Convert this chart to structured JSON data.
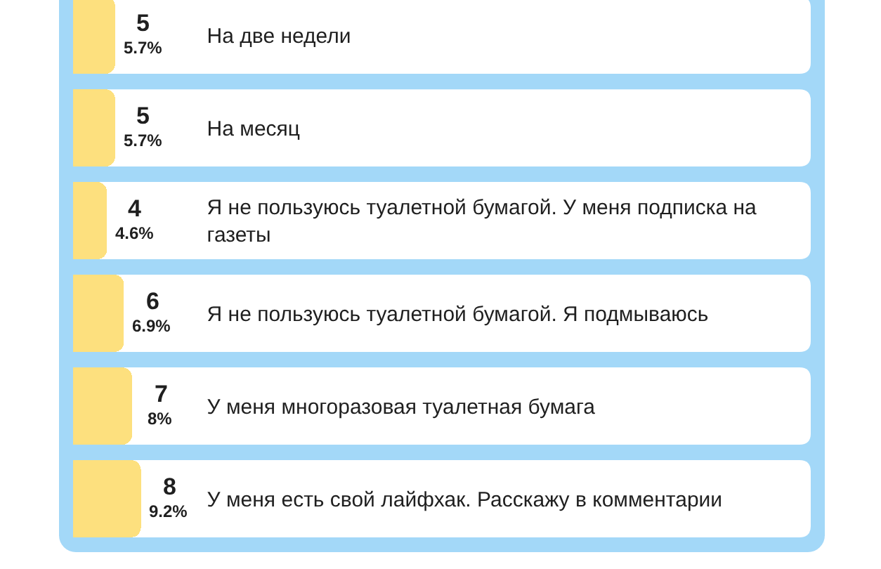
{
  "chart_data": {
    "type": "bar",
    "orientation": "horizontal",
    "categories": [
      "На две недели",
      "На месяц",
      "Я не пользуюсь туалетной бумагой. У меня подписка на газеты",
      "Я не пользуюсь туалетной бумагой. Я подмываюсь",
      "У меня многоразовая туалетная бумага",
      "У меня есть свой лайфхак. Расскажу в комментарии"
    ],
    "values": [
      5.7,
      5.7,
      4.6,
      6.9,
      8,
      9.2
    ],
    "color": "#fde07e",
    "value_labels": [
      "5.7%",
      "5.7%",
      "4.6%",
      "6.9%",
      "8%",
      "9.2%"
    ],
    "annotations": [
      "5",
      "5",
      "4",
      "6",
      "7",
      "8"
    ],
    "xlim": [
      0,
      100
    ],
    "tick_labels": "y"
  }
}
